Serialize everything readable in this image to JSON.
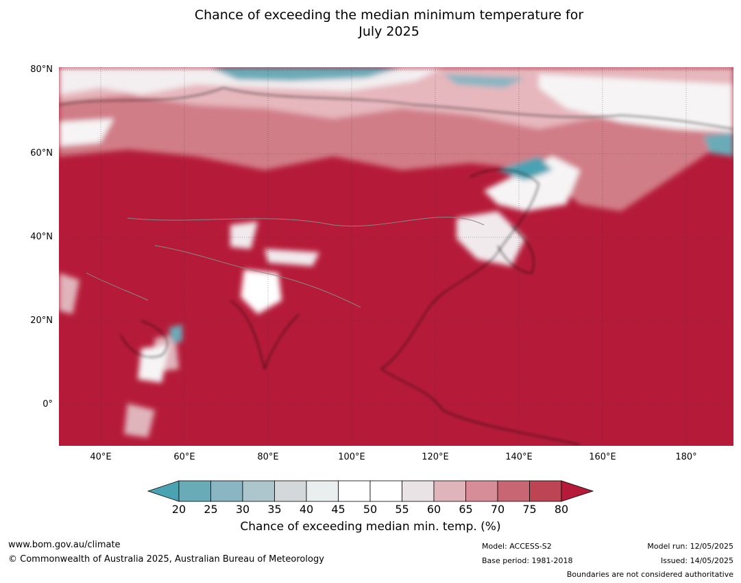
{
  "title_line1": "Chance of exceeding the median minimum temperature for",
  "title_line2": "July 2025",
  "map": {
    "type": "filled-contour-map",
    "region": "Asia",
    "lat_ticks": [
      "80°N",
      "60°N",
      "40°N",
      "20°N",
      "0°"
    ],
    "lon_ticks": [
      "40°E",
      "60°E",
      "80°E",
      "100°E",
      "120°E",
      "140°E",
      "160°E",
      "180°"
    ],
    "lat_range": [
      -10,
      80
    ],
    "lon_range": [
      30,
      191
    ],
    "dominant_value": "80+",
    "colors": {
      "high": "#b51b39",
      "mid_high": "#d17d87",
      "neutral": "#ffffff",
      "low": "#6aabb8",
      "coast": "#000000",
      "border": "#888888"
    }
  },
  "colorbar": {
    "ticks": [
      "20",
      "25",
      "30",
      "35",
      "40",
      "45",
      "50",
      "55",
      "60",
      "65",
      "70",
      "75",
      "80"
    ],
    "colors": [
      "#4aa2b2",
      "#6aabb8",
      "#8ab5c2",
      "#adc6cd",
      "#d3d8da",
      "#e9eeef",
      "#ffffff",
      "#ffffff",
      "#eae3e5",
      "#e0b4bb",
      "#d68d97",
      "#c96673",
      "#bd4452",
      "#b51b39"
    ],
    "label": "Chance of exceeding median min. temp. (%)"
  },
  "footer": {
    "website": "www.bom.gov.au/climate",
    "copyright": "© Commonwealth of Australia 2025, Australian Bureau of Meteorology",
    "model": "Model: ACCESS-S2",
    "base_period": "Base period: 1981-2018",
    "model_run": "Model run: 12/05/2025",
    "issued": "Issued: 14/05/2025",
    "boundaries": "Boundaries are not considered authoritative"
  }
}
